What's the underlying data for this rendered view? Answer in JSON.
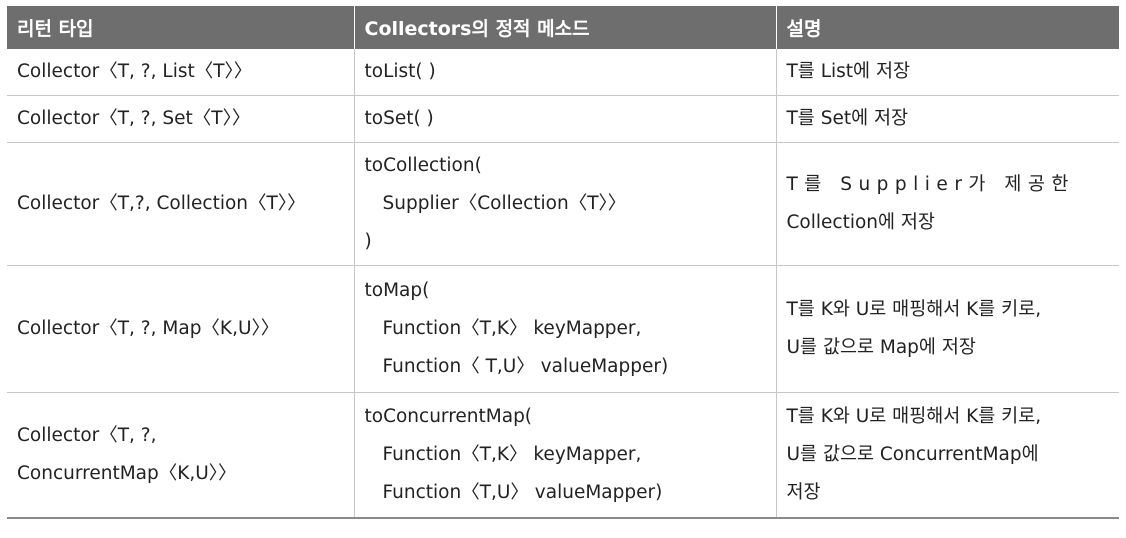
{
  "table": {
    "headers": [
      "리턴 타입",
      "Collectors의 정적 메소드",
      "설명"
    ],
    "rows": [
      {
        "return_type": [
          "Collector〈T, ?, List〈T〉〉"
        ],
        "method": [
          "toList( )"
        ],
        "description": [
          "T를 List에 저장"
        ]
      },
      {
        "return_type": [
          "Collector〈T, ?, Set〈T〉〉"
        ],
        "method": [
          "toSet( )"
        ],
        "description": [
          "T를 Set에 저장"
        ]
      },
      {
        "return_type": [
          "Collector〈T,?, Collection〈T〉〉"
        ],
        "method": [
          "toCollection(",
          "Supplier〈Collection〈T〉〉",
          ")"
        ],
        "description": [
          "T를 Supplier가 제공한",
          "Collection에 저장"
        ]
      },
      {
        "return_type": [
          "Collector〈T, ?, Map〈K,U〉〉"
        ],
        "method": [
          "toMap(",
          "Function〈T,K〉 keyMapper,",
          "Function〈 T,U〉 valueMapper)"
        ],
        "description": [
          "T를 K와 U로 매핑해서 K를 키로,",
          "U를 값으로 Map에 저장"
        ]
      },
      {
        "return_type": [
          "Collector〈T, ?,",
          "ConcurrentMap〈K,U〉〉"
        ],
        "method": [
          "toConcurrentMap(",
          "Function〈T,K〉 keyMapper,",
          "Function〈T,U〉 valueMapper)"
        ],
        "description": [
          "T를 K와 U로 매핑해서 K를 키로,",
          "U를 값으로 ConcurrentMap에",
          "저장"
        ]
      }
    ]
  },
  "colors": {
    "header_bg": "#6e6e6e",
    "header_text": "#ffffff",
    "grid_line": "#c7c7c7",
    "body_text": "#222222"
  }
}
